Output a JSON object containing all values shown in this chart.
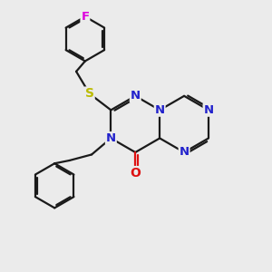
{
  "bg_color": "#ebebeb",
  "bond_color": "#1a1a1a",
  "bond_lw": 1.6,
  "atom_colors": {
    "N": "#2222cc",
    "O": "#dd1111",
    "S": "#bbbb00",
    "F": "#dd00dd",
    "C": "#1a1a1a"
  },
  "font_size": 9.5,
  "ring_r": 0.95,
  "xlim": [
    0,
    8.5
  ],
  "ylim": [
    0,
    9.0
  ]
}
